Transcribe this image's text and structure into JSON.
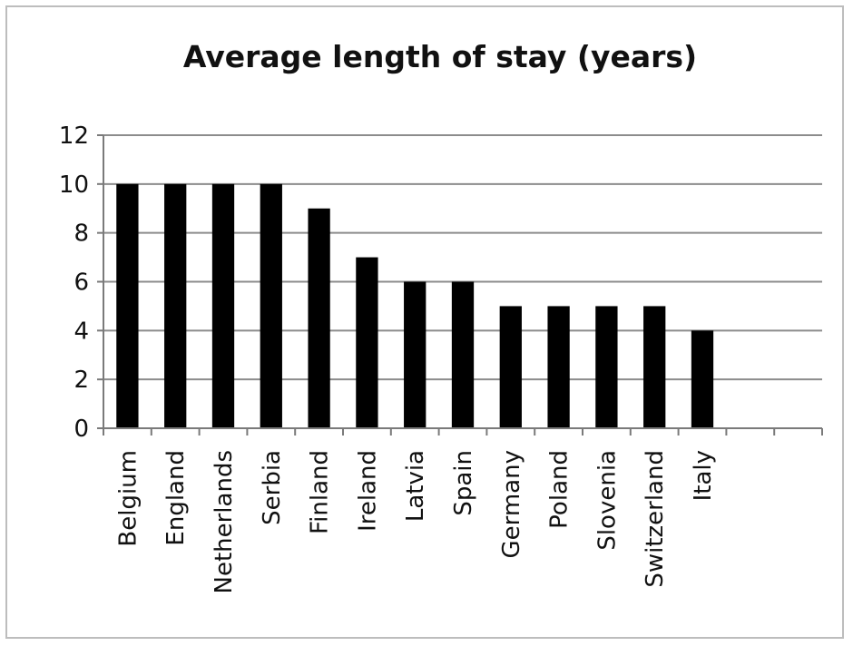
{
  "chart_data": {
    "type": "bar",
    "title": "Average length of stay (years)",
    "xlabel": "",
    "ylabel": "",
    "categories": [
      "Belgium",
      "England",
      "Netherlands",
      "Serbia",
      "Finland",
      "Ireland",
      "Latvia",
      "Spain",
      "Germany",
      "Poland",
      "Slovenia",
      "Switzerland",
      "Italy",
      "",
      ""
    ],
    "values": [
      10,
      10,
      10,
      10,
      9,
      7,
      6,
      6,
      5,
      5,
      5,
      5,
      4,
      null,
      null
    ],
    "ylim": [
      0,
      12
    ],
    "yticks": [
      "0",
      "2",
      "4",
      "6",
      "8",
      "10",
      "12"
    ],
    "grid": "horizontal",
    "legend": "none",
    "bar_color": "#000000",
    "grid_color": "#8c8c8c"
  }
}
